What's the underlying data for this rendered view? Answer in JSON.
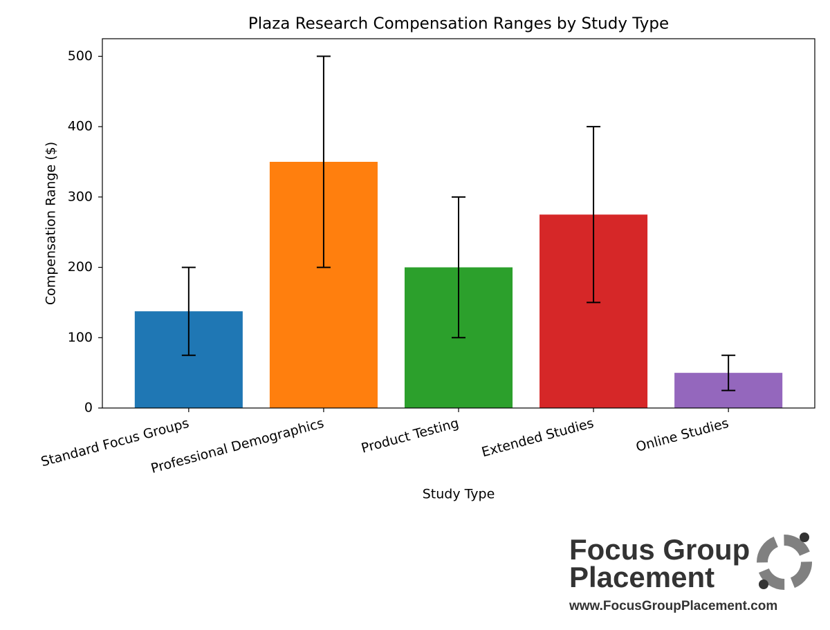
{
  "chart_data": {
    "type": "bar",
    "title": "Plaza Research Compensation Ranges by Study Type",
    "x_label": "Study Type",
    "y_label": "Compensation Range ($)",
    "categories": [
      "Standard Focus Groups",
      "Professional Demographics",
      "Product Testing",
      "Extended Studies",
      "Online Studies"
    ],
    "values": [
      137.5,
      350,
      200,
      275,
      50
    ],
    "errors": [
      62.5,
      150,
      100,
      125,
      25
    ],
    "colors": [
      "#1f77b4",
      "#ff7f0e",
      "#2ca02c",
      "#d62728",
      "#9467bd"
    ],
    "ylim": [
      0,
      525
    ],
    "yticks": [
      0,
      100,
      200,
      300,
      400,
      500
    ],
    "grid": false
  },
  "logo": {
    "line1": "Focus Group",
    "line2": "Placement",
    "url": "www.FocusGroupPlacement.com"
  }
}
